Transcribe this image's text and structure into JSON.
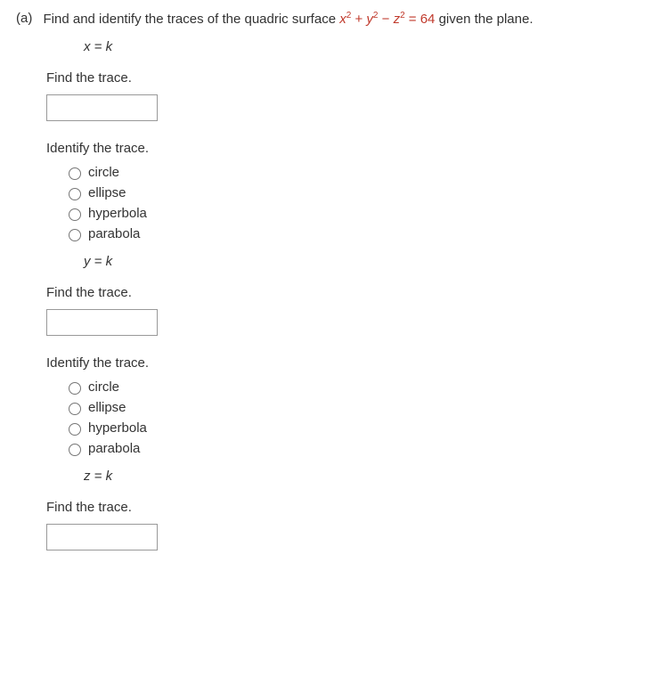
{
  "part_label": "(a)",
  "prompt_pre": "Find and identify the traces of the quadric surface ",
  "equation_html": "x² + y² − z² = 64",
  "prompt_post": " given the plane.",
  "find_label": "Find the trace.",
  "identify_label": "Identify the trace.",
  "options": [
    "circle",
    "ellipse",
    "hyperbola",
    "parabola"
  ],
  "planes": [
    "x = k",
    "y = k",
    "z = k"
  ]
}
